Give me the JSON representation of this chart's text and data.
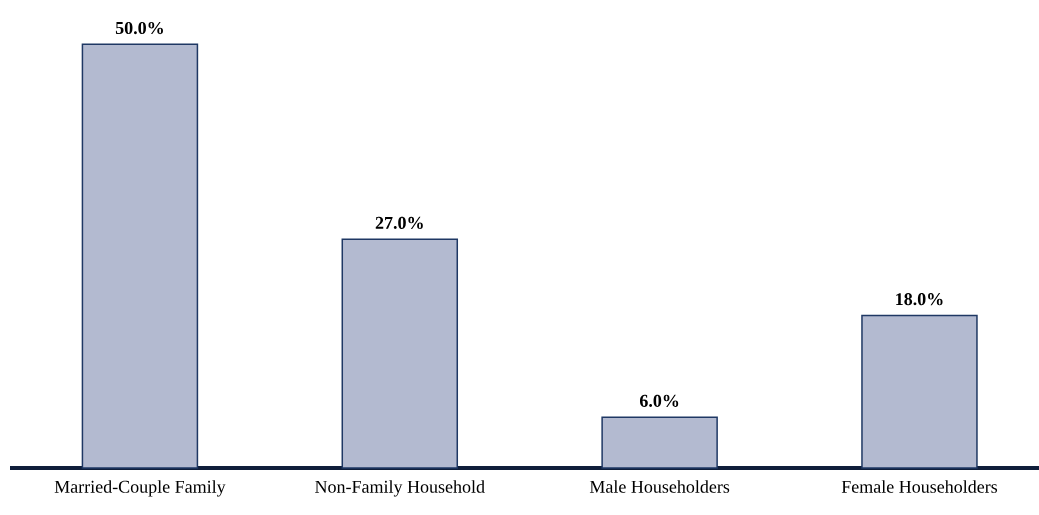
{
  "chart_data": {
    "type": "bar",
    "categories": [
      "Married-Couple Family",
      "Non-Family Household",
      "Male Householders",
      "Female Householders"
    ],
    "values": [
      50.0,
      27.0,
      6.0,
      18.0
    ],
    "value_labels": [
      "50.0%",
      "27.0%",
      "6.0%",
      "18.0%"
    ],
    "color": "#b3bad0",
    "tick_labels": "x"
  }
}
